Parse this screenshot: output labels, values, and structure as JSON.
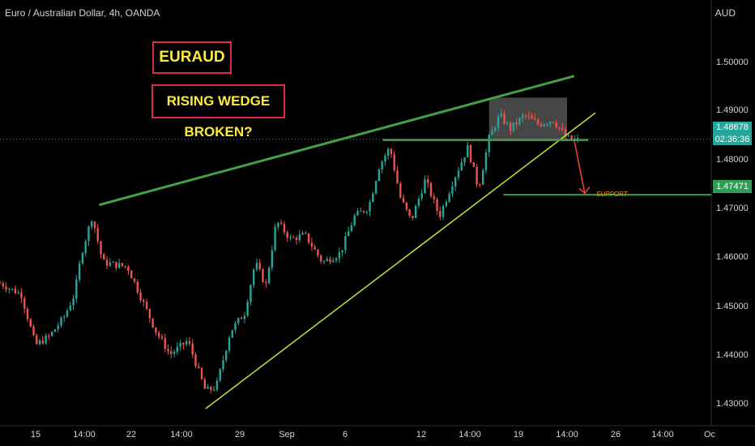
{
  "header": {
    "title": "Euro / Australian Dollar, 4h, OANDA",
    "currency": "AUD"
  },
  "annotations": {
    "symbol_label": "EURAUD",
    "pattern_label": "RISING WEDGE BROKEN?",
    "support_label": "SUPPORT"
  },
  "price_scale": {
    "current_price": "1.48678",
    "countdown": "02:36:36",
    "support_price": "1.47471"
  },
  "colors": {
    "up": "#26a69a",
    "down": "#ef5350",
    "wedge_top": "#43a047",
    "wedge_bottom": "#cddc39",
    "support_line": "#2e9e56",
    "label_text": "#ffeb3b",
    "label_border": "#e0294a",
    "arrow": "#f44336",
    "box": "#808080"
  },
  "chart_data": {
    "type": "candlestick",
    "symbol": "EURAUD",
    "timeframe": "4h",
    "title": "Euro / Australian Dollar, 4h, OANDA",
    "ylim": [
      1.4245,
      1.5135
    ],
    "y_ticks": [
      "1.50000",
      "1.49000",
      "1.48000",
      "1.47000",
      "1.46000",
      "1.45000",
      "1.44000",
      "1.43000"
    ],
    "x_ticks": [
      "15",
      "14:00",
      "22",
      "14:00",
      "29",
      "Sep",
      "6",
      "12",
      "14:00",
      "19",
      "14:00",
      "26",
      "14:00",
      "Oc"
    ],
    "price_path": [
      {
        "t": 0.0,
        "p": 1.4555
      },
      {
        "t": 0.03,
        "p": 1.453
      },
      {
        "t": 0.05,
        "p": 1.442
      },
      {
        "t": 0.07,
        "p": 1.444
      },
      {
        "t": 0.09,
        "p": 1.448
      },
      {
        "t": 0.105,
        "p": 1.453
      },
      {
        "t": 0.115,
        "p": 1.462
      },
      {
        "t": 0.13,
        "p": 1.47
      },
      {
        "t": 0.145,
        "p": 1.46
      },
      {
        "t": 0.18,
        "p": 1.459
      },
      {
        "t": 0.2,
        "p": 1.452
      },
      {
        "t": 0.22,
        "p": 1.445
      },
      {
        "t": 0.24,
        "p": 1.44
      },
      {
        "t": 0.265,
        "p": 1.443
      },
      {
        "t": 0.29,
        "p": 1.432
      },
      {
        "t": 0.305,
        "p": 1.433
      },
      {
        "t": 0.325,
        "p": 1.445
      },
      {
        "t": 0.345,
        "p": 1.449
      },
      {
        "t": 0.36,
        "p": 1.46
      },
      {
        "t": 0.375,
        "p": 1.455
      },
      {
        "t": 0.39,
        "p": 1.469
      },
      {
        "t": 0.41,
        "p": 1.465
      },
      {
        "t": 0.43,
        "p": 1.466
      },
      {
        "t": 0.455,
        "p": 1.46
      },
      {
        "t": 0.48,
        "p": 1.462
      },
      {
        "t": 0.5,
        "p": 1.47
      },
      {
        "t": 0.52,
        "p": 1.472
      },
      {
        "t": 0.535,
        "p": 1.481
      },
      {
        "t": 0.55,
        "p": 1.485
      },
      {
        "t": 0.565,
        "p": 1.474
      },
      {
        "t": 0.58,
        "p": 1.469
      },
      {
        "t": 0.6,
        "p": 1.478
      },
      {
        "t": 0.62,
        "p": 1.47
      },
      {
        "t": 0.64,
        "p": 1.478
      },
      {
        "t": 0.66,
        "p": 1.485
      },
      {
        "t": 0.675,
        "p": 1.476
      },
      {
        "t": 0.69,
        "p": 1.487
      },
      {
        "t": 0.705,
        "p": 1.492
      },
      {
        "t": 0.72,
        "p": 1.489
      },
      {
        "t": 0.74,
        "p": 1.492
      },
      {
        "t": 0.76,
        "p": 1.49
      },
      {
        "t": 0.78,
        "p": 1.491
      },
      {
        "t": 0.8,
        "p": 1.487
      },
      {
        "t": 0.815,
        "p": 1.4866
      }
    ],
    "wedge_top": [
      {
        "t": 0.14,
        "p": 1.4725
      },
      {
        "t": 0.81,
        "p": 1.5005
      }
    ],
    "wedge_bottom": [
      {
        "t": 0.29,
        "p": 1.4282
      },
      {
        "t": 0.84,
        "p": 1.4925
      }
    ],
    "resistance": {
      "price": 1.4866,
      "from_t": 0.54,
      "to_t": 0.83
    },
    "consolidation_box": {
      "price_low": 1.4866,
      "price_high": 1.4958,
      "from_t": 0.69,
      "to_t": 0.8
    },
    "support": {
      "price": 1.47471,
      "from_t": 0.71
    },
    "projection": [
      {
        "t": 0.81,
        "p": 1.4866
      },
      {
        "t": 0.825,
        "p": 1.475
      }
    ],
    "last_price": 1.48678
  }
}
